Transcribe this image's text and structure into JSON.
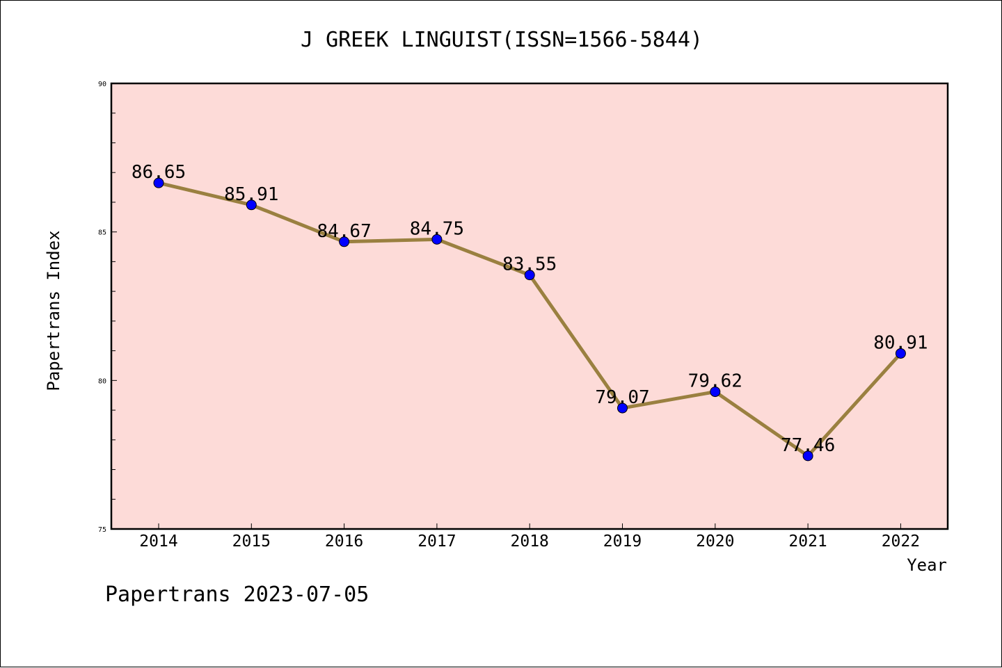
{
  "chart_data": {
    "type": "line",
    "title": "J GREEK LINGUIST(ISSN=1566-5844)",
    "xlabel": "Year",
    "ylabel": "Papertrans Index",
    "categories": [
      "2014",
      "2015",
      "2016",
      "2017",
      "2018",
      "2019",
      "2020",
      "2021",
      "2022"
    ],
    "series": [
      {
        "values": [
          86.65,
          85.91,
          84.67,
          84.75,
          83.55,
          79.07,
          79.62,
          77.46,
          80.91
        ],
        "value_labels": [
          "86.65",
          "85.91",
          "84.67",
          "84.75",
          "83.55",
          "79.07",
          "79.62",
          "77.46",
          "80.91"
        ]
      }
    ],
    "ylim": [
      75,
      90
    ],
    "yticks": [
      "75",
      "80",
      "85",
      "90"
    ],
    "grid": false,
    "colors": {
      "plot_background": "#fddbd8",
      "line": "#9a8040",
      "marker": "#0000ff"
    }
  },
  "footer": "Papertrans 2023-07-05"
}
